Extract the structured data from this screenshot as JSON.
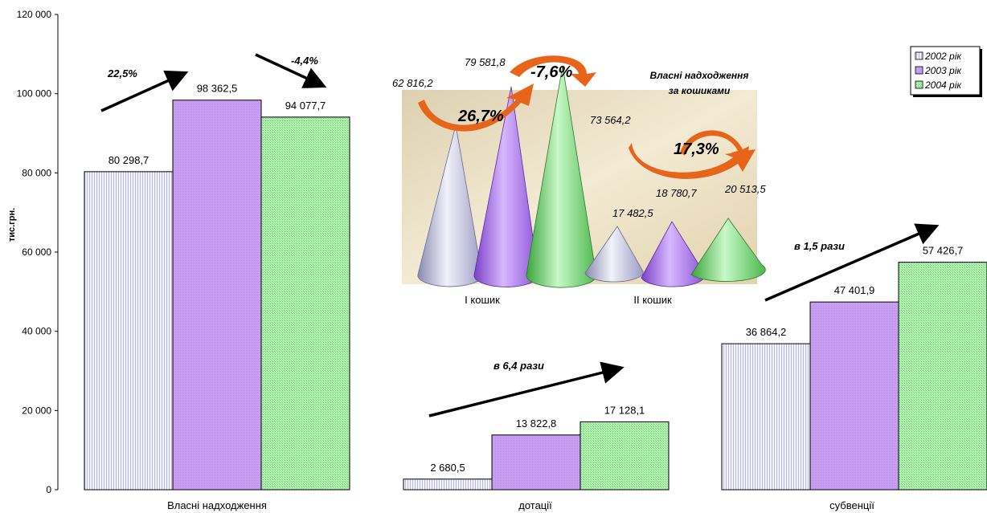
{
  "chart_data": {
    "type": "bar",
    "ylabel": "тис.грн.",
    "ylim": [
      0,
      120000
    ],
    "yticks": [
      "0",
      "20 000",
      "40 000",
      "60 000",
      "80 000",
      "100 000",
      "120 000"
    ],
    "ytick_values": [
      0,
      20000,
      40000,
      60000,
      80000,
      100000,
      120000
    ],
    "categories": [
      "Власні надходження",
      "дотації",
      "субвенції"
    ],
    "series": [
      {
        "name": "2002 рік",
        "values": [
          80298.7,
          2680.5,
          36864.2
        ],
        "labels": [
          "80 298,7",
          "2 680,5",
          "36 864,2"
        ],
        "color": "#eeeef8"
      },
      {
        "name": "2003 рік",
        "values": [
          98362.5,
          13822.8,
          47401.9
        ],
        "labels": [
          "98 362,5",
          "13 822,8",
          "47 401,9"
        ],
        "color": "#c69ef0"
      },
      {
        "name": "2004 рік",
        "values": [
          94077.7,
          17128.1,
          57426.7
        ],
        "labels": [
          "94 077,7",
          "17 128,1",
          "57 426,7"
        ],
        "color": "#a8eca8"
      }
    ],
    "legend_position": "top-right",
    "grid": false,
    "annotations": [
      "22,5%",
      "-4,4%",
      "в 6,4 рази",
      "в 1,5 рази"
    ],
    "inset": {
      "type": "cone",
      "title_line1": "Власні надходження",
      "title_line2": "за кошиками",
      "categories": [
        "І кошик",
        "ІІ кошик"
      ],
      "values": {
        "basket1": [
          62816.2,
          79581.8,
          73564.2
        ],
        "basket2": [
          17482.5,
          18780.7,
          20513.5
        ]
      },
      "labels": {
        "basket1": [
          "62 816,2",
          "79 581,8",
          "73 564,2"
        ],
        "basket2": [
          "17 482,5",
          "18 780,7",
          "20 513,5"
        ]
      },
      "changes": [
        "26,7%",
        "-7,6%",
        "17,3%"
      ]
    }
  }
}
